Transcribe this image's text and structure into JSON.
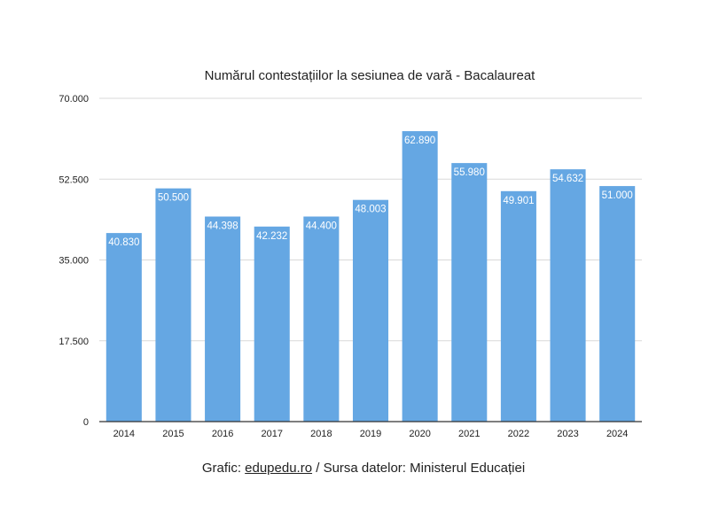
{
  "chart_data": {
    "type": "bar",
    "title": "Numărul contestațiilor la sesiunea de vară - Bacalaureat",
    "xlabel": "",
    "ylabel": "",
    "categories": [
      "2014",
      "2015",
      "2016",
      "2017",
      "2018",
      "2019",
      "2020",
      "2021",
      "2022",
      "2023",
      "2024"
    ],
    "values": [
      40830,
      50500,
      44398,
      42232,
      44400,
      48003,
      62890,
      55980,
      49901,
      54632,
      51000
    ],
    "value_labels": [
      "40.830",
      "50.500",
      "44.398",
      "42.232",
      "44.400",
      "48.003",
      "62.890",
      "55.980",
      "49.901",
      "54.632",
      "51.000"
    ],
    "ylim": [
      0,
      70000
    ],
    "yticks": [
      0,
      17500,
      35000,
      52500,
      70000
    ],
    "ytick_labels": [
      "0",
      "17.500",
      "35.000",
      "52.500",
      "70.000"
    ],
    "grid": true,
    "bar_color": "#65a7e3"
  },
  "caption": {
    "prefix": "Grafic: ",
    "link": "edupedu.ro",
    "suffix": " / Sursa datelor: Ministerul Educației"
  }
}
